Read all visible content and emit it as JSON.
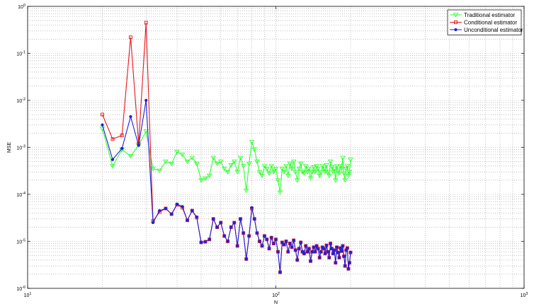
{
  "chart_data": {
    "type": "line",
    "xlabel": "N",
    "ylabel": "MSE",
    "xscale": "log",
    "yscale": "log",
    "xlim": [
      10,
      1000
    ],
    "ylim": [
      1e-06,
      1
    ],
    "grid": true,
    "legend_position": "top-right",
    "x_ticks": [
      {
        "value": 10,
        "base": "10",
        "exp": "1"
      },
      {
        "value": 100,
        "base": "10",
        "exp": "2"
      },
      {
        "value": 1000,
        "base": "10",
        "exp": "3"
      }
    ],
    "y_ticks": [
      {
        "value": 1e-06,
        "base": "10",
        "exp": "-6"
      },
      {
        "value": 1e-05,
        "base": "10",
        "exp": "-5"
      },
      {
        "value": 0.0001,
        "base": "10",
        "exp": "-4"
      },
      {
        "value": 0.001,
        "base": "10",
        "exp": "-3"
      },
      {
        "value": 0.01,
        "base": "10",
        "exp": "-2"
      },
      {
        "value": 0.1,
        "base": "10",
        "exp": "-1"
      },
      {
        "value": 1,
        "base": "10",
        "exp": "0"
      }
    ],
    "x": [
      20,
      22,
      24,
      26,
      28,
      30,
      32,
      34,
      36,
      38,
      40,
      42,
      44,
      46,
      48,
      50,
      52,
      54,
      56,
      58,
      60,
      62,
      64,
      66,
      68,
      70,
      72,
      74,
      76,
      78,
      80,
      82,
      84,
      86,
      88,
      90,
      92,
      94,
      96,
      98,
      100,
      102,
      104,
      106,
      108,
      110,
      112,
      114,
      116,
      118,
      120,
      122,
      124,
      126,
      128,
      130,
      132,
      134,
      136,
      138,
      140,
      142,
      144,
      146,
      148,
      150,
      152,
      154,
      156,
      158,
      160,
      162,
      164,
      166,
      168,
      170,
      172,
      174,
      176,
      178,
      180,
      182,
      184,
      186,
      188,
      190,
      192,
      194,
      196,
      198,
      200
    ],
    "series": [
      {
        "name": "Traditional estimator",
        "color": "#33ff33",
        "marker": "triangle-down",
        "values": [
          0.0025,
          0.0004,
          0.0009,
          0.00065,
          0.0011,
          0.0022,
          0.00035,
          0.00032,
          0.0005,
          0.00045,
          0.0008,
          0.0007,
          0.0005,
          0.0006,
          0.00045,
          0.0002,
          0.00022,
          0.00025,
          0.0006,
          0.00045,
          0.0005,
          0.00035,
          0.0003,
          0.00042,
          0.0005,
          0.0003,
          0.0006,
          0.0004,
          0.00012,
          0.00045,
          0.0013,
          0.0009,
          0.0005,
          0.0003,
          0.00025,
          0.0004,
          0.00035,
          0.00028,
          0.0004,
          0.0003,
          0.00035,
          0.0002,
          0.00011,
          0.00035,
          0.0003,
          0.0004,
          0.00025,
          0.00045,
          0.00035,
          0.0005,
          0.0003,
          0.0002,
          0.00035,
          0.00045,
          0.0003,
          0.00028,
          0.0004,
          0.0003,
          0.00035,
          0.00022,
          0.0003,
          0.00038,
          0.0003,
          0.0004,
          0.00035,
          0.00025,
          0.0003,
          0.0004,
          0.00035,
          0.0003,
          0.00042,
          0.0003,
          0.00025,
          0.0005,
          0.00038,
          0.0003,
          0.00035,
          0.0002,
          0.0004,
          0.00032,
          0.00028,
          0.0004,
          0.00035,
          0.0006,
          0.00028,
          0.0002,
          0.00035,
          0.0004,
          0.00025,
          0.0003,
          0.00055
        ]
      },
      {
        "name": "Conditional estimator",
        "color": "#e8161c",
        "marker": "square",
        "values": [
          0.005,
          0.0015,
          0.0018,
          0.22,
          0.0012,
          0.45,
          2.7e-05,
          4.2e-05,
          5e-05,
          3.8e-05,
          6e-05,
          5.2e-05,
          2.8e-05,
          4.5e-05,
          3.2e-05,
          9.5e-06,
          9.8e-06,
          1.1e-05,
          3e-05,
          2e-05,
          2.5e-05,
          1.3e-05,
          1e-05,
          2e-05,
          2.5e-05,
          8e-06,
          3e-05,
          1.5e-05,
          4.2e-06,
          1.3e-05,
          5e-05,
          3e-05,
          1.5e-05,
          1e-05,
          8e-06,
          1.3e-05,
          1.1e-05,
          7e-06,
          1.2e-05,
          9e-06,
          1.1e-05,
          6e-06,
          2.2e-06,
          9.5e-06,
          8.5e-06,
          1e-05,
          6e-06,
          9e-06,
          7.5e-06,
          1.05e-05,
          6.5e-06,
          4e-06,
          7e-06,
          9.5e-06,
          6e-06,
          5.5e-06,
          8e-06,
          6e-06,
          7e-06,
          3.8e-06,
          6e-06,
          7.5e-06,
          6e-06,
          8e-06,
          7e-06,
          4.5e-06,
          6e-06,
          7.5e-06,
          7e-06,
          5.5e-06,
          8.2e-06,
          6e-06,
          4.5e-06,
          9e-06,
          7e-06,
          5.5e-06,
          6.5e-06,
          3.5e-06,
          7.5e-06,
          5.8e-06,
          4.5e-06,
          7.2e-06,
          6.2e-06,
          8e-06,
          4.8e-06,
          3e-06,
          6.5e-06,
          7.2e-06,
          2.6e-06,
          3.5e-06,
          5.8e-06
        ]
      },
      {
        "name": "Unconditional estimator",
        "color": "#1e22d8",
        "marker": "circle",
        "values": [
          0.003,
          0.00055,
          0.00095,
          0.0045,
          0.0011,
          0.01,
          2.5e-05,
          4.5e-05,
          5e-05,
          3.8e-05,
          6.2e-05,
          5.5e-05,
          2.8e-05,
          4.5e-05,
          3.3e-05,
          9.5e-06,
          9.8e-06,
          1.1e-05,
          3e-05,
          2e-05,
          2.5e-05,
          1.3e-05,
          1e-05,
          2e-05,
          2.5e-05,
          8e-06,
          3e-05,
          1.5e-05,
          4.2e-06,
          1.3e-05,
          5.2e-05,
          3e-05,
          1.5e-05,
          1e-05,
          8e-06,
          1.3e-05,
          1.1e-05,
          7e-06,
          1.2e-05,
          9e-06,
          1.1e-05,
          6e-06,
          2.2e-06,
          9.5e-06,
          8.5e-06,
          1e-05,
          6e-06,
          9e-06,
          7.5e-06,
          1.05e-05,
          6.5e-06,
          4e-06,
          7e-06,
          9.5e-06,
          6e-06,
          5.5e-06,
          8e-06,
          6e-06,
          7e-06,
          3.8e-06,
          6e-06,
          7.5e-06,
          6e-06,
          8e-06,
          7e-06,
          4.5e-06,
          6e-06,
          7.5e-06,
          7e-06,
          5.5e-06,
          8.2e-06,
          6e-06,
          4.5e-06,
          9e-06,
          7e-06,
          5.5e-06,
          6.5e-06,
          3.5e-06,
          7.5e-06,
          5.8e-06,
          4.5e-06,
          7.2e-06,
          6.2e-06,
          8e-06,
          4.8e-06,
          3e-06,
          6.5e-06,
          7.2e-06,
          2.6e-06,
          3.5e-06,
          5.8e-06
        ]
      }
    ]
  }
}
